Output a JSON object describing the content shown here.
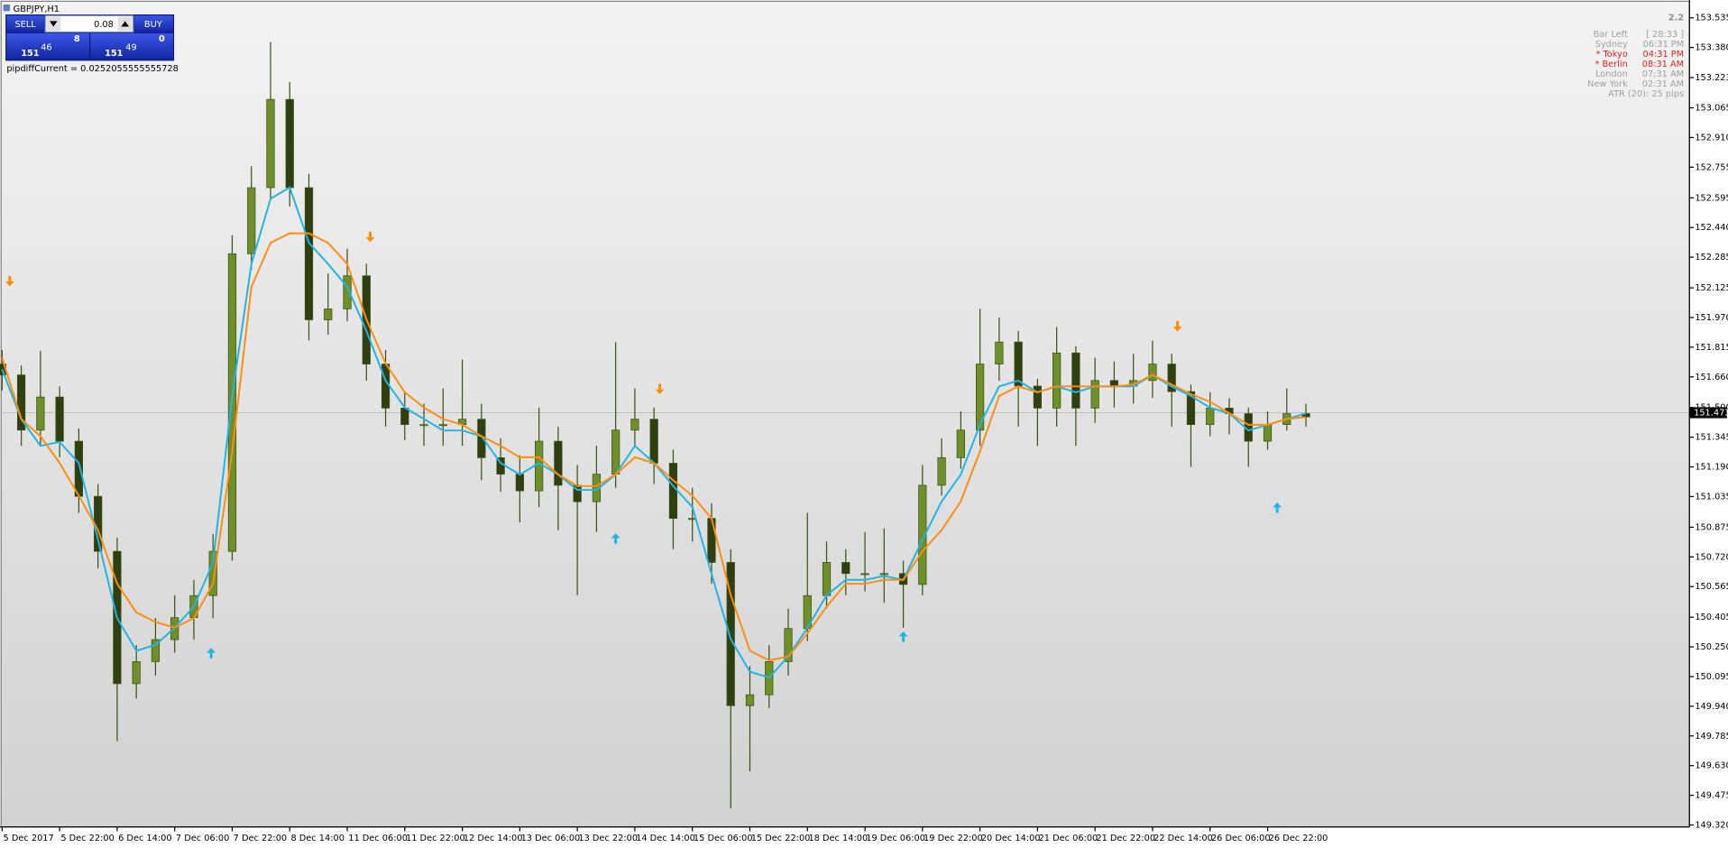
{
  "window": {
    "title": "GBPJPY,H1"
  },
  "trade_panel": {
    "sell": "SELL",
    "buy": "BUY",
    "lots": "0.08",
    "bid": {
      "big": "151",
      "pips": "46",
      "point": "8"
    },
    "ask": {
      "big": "151",
      "pips": "49",
      "point": "0"
    }
  },
  "indicator_text": "pipdiffCurrent = 0.0252055555555728",
  "info_panel": {
    "spread": "2.2",
    "rows": [
      {
        "label": "Bar Left",
        "value": "[ 28:33 ]",
        "color": "#a0a0a0"
      },
      {
        "label": "Sydney",
        "value": "06:31 PM",
        "color": "#a0a0a0"
      },
      {
        "label": "* Tokyo",
        "value": "04:31 PM",
        "color": "#e02020"
      },
      {
        "label": "* Berlin",
        "value": "08:31 AM",
        "color": "#e02020"
      },
      {
        "label": "London",
        "value": "07:31 AM",
        "color": "#a0a0a0"
      },
      {
        "label": "New York",
        "value": "02:31 AM",
        "color": "#a0a0a0"
      }
    ],
    "atr": "ATR (20): 25 pips"
  },
  "chart_data": {
    "type": "candlestick",
    "up_color": "#6f8f2a",
    "down_color": "#2f3f12",
    "wick_color": "#3a5214",
    "open": [
      151.727,
      151.67,
      151.382,
      151.555,
      151.324,
      151.036,
      150.749,
      150.058,
      150.173,
      150.288,
      150.403,
      150.518,
      150.749,
      152.303,
      152.648,
      153.109,
      152.648,
      151.958,
      152.015,
      152.188,
      151.727,
      151.497,
      151.411,
      151.411,
      151.411,
      151.439,
      151.238,
      151.152,
      151.065,
      151.324,
      151.094,
      151.008,
      151.152,
      151.382,
      151.439,
      151.209,
      150.921,
      150.921,
      150.691,
      149.943,
      150.0,
      150.173,
      150.346,
      150.518,
      150.691,
      150.633,
      150.633,
      150.633,
      150.576,
      151.094,
      151.238,
      151.382,
      151.727,
      151.842,
      151.612,
      151.497,
      151.785,
      151.497,
      151.641,
      151.612,
      151.641,
      151.727,
      151.583,
      151.411,
      151.497,
      151.468,
      151.324,
      151.411,
      151.468
    ],
    "high": [
      151.8,
      151.72,
      151.796,
      151.61,
      151.39,
      151.1,
      150.82,
      150.26,
      150.4,
      150.52,
      150.6,
      150.84,
      152.4,
      152.76,
      153.408,
      153.2,
      152.72,
      152.2,
      152.33,
      152.25,
      151.8,
      151.58,
      151.52,
      151.6,
      151.75,
      151.52,
      151.34,
      151.25,
      151.5,
      151.4,
      151.2,
      151.3,
      151.842,
      151.6,
      151.5,
      151.28,
      151.08,
      151.0,
      150.76,
      150.15,
      150.26,
      150.45,
      150.95,
      150.8,
      150.76,
      150.85,
      150.87,
      150.7,
      151.2,
      151.34,
      151.48,
      152.015,
      151.97,
      151.9,
      151.65,
      151.92,
      151.82,
      151.76,
      151.74,
      151.78,
      151.85,
      151.78,
      151.62,
      151.58,
      151.55,
      151.5,
      151.48,
      151.6,
      151.52
    ],
    "low": [
      151.59,
      151.3,
      151.3,
      151.24,
      150.95,
      150.66,
      149.758,
      149.98,
      150.1,
      150.22,
      150.288,
      150.4,
      150.7,
      152.22,
      152.58,
      152.55,
      151.85,
      151.88,
      151.95,
      151.64,
      151.4,
      151.33,
      151.3,
      151.3,
      151.3,
      151.12,
      151.06,
      150.9,
      150.98,
      150.86,
      150.52,
      150.85,
      151.08,
      151.3,
      151.1,
      150.76,
      150.8,
      150.58,
      149.407,
      149.6,
      149.93,
      150.1,
      150.28,
      150.45,
      150.52,
      150.54,
      150.48,
      150.35,
      150.52,
      151.04,
      151.18,
      151.3,
      151.64,
      151.4,
      151.3,
      151.4,
      151.3,
      151.42,
      151.5,
      151.52,
      151.55,
      151.4,
      151.19,
      151.35,
      151.36,
      151.19,
      151.28,
      151.38,
      151.4
    ],
    "close": [
      151.67,
      151.382,
      151.555,
      151.324,
      151.036,
      150.749,
      150.058,
      150.173,
      150.288,
      150.403,
      150.518,
      150.749,
      152.303,
      152.648,
      153.109,
      152.648,
      151.958,
      152.015,
      152.188,
      151.727,
      151.497,
      151.411,
      151.411,
      151.411,
      151.439,
      151.238,
      151.152,
      151.065,
      151.324,
      151.094,
      151.008,
      151.152,
      151.382,
      151.439,
      151.209,
      150.921,
      150.921,
      150.691,
      149.943,
      150.0,
      150.173,
      150.346,
      150.518,
      150.691,
      150.633,
      150.633,
      150.633,
      150.576,
      151.094,
      151.238,
      151.382,
      151.727,
      151.842,
      151.612,
      151.497,
      151.785,
      151.497,
      151.641,
      151.612,
      151.641,
      151.727,
      151.583,
      151.411,
      151.497,
      151.468,
      151.324,
      151.411,
      151.468,
      151.451
    ],
    "lines": [
      {
        "color": "#1eb4e6",
        "values": [
          151.7,
          151.44,
          151.3,
          151.32,
          151.21,
          150.81,
          150.4,
          150.23,
          150.26,
          150.35,
          150.46,
          150.69,
          151.56,
          152.25,
          152.59,
          152.65,
          152.36,
          152.25,
          152.13,
          151.9,
          151.64,
          151.5,
          151.44,
          151.38,
          151.38,
          151.35,
          151.21,
          151.15,
          151.21,
          151.15,
          151.07,
          151.07,
          151.15,
          151.3,
          151.21,
          151.09,
          150.98,
          150.63,
          150.29,
          150.12,
          150.09,
          150.2,
          150.35,
          150.52,
          150.6,
          150.6,
          150.62,
          150.6,
          150.81,
          151.01,
          151.15,
          151.41,
          151.61,
          151.64,
          151.58,
          151.61,
          151.58,
          151.61,
          151.61,
          151.61,
          151.67,
          151.61,
          151.56,
          151.5,
          151.47,
          151.38,
          151.41,
          151.44,
          151.47
        ]
      },
      {
        "color": "#ff8c0a",
        "values": [
          151.76,
          151.44,
          151.35,
          151.21,
          151.04,
          150.86,
          150.58,
          150.43,
          150.38,
          150.35,
          150.4,
          150.58,
          151.27,
          152.13,
          152.36,
          152.41,
          152.41,
          152.36,
          152.25,
          151.96,
          151.73,
          151.58,
          151.5,
          151.44,
          151.41,
          151.35,
          151.3,
          151.24,
          151.24,
          151.15,
          151.09,
          151.09,
          151.15,
          151.24,
          151.21,
          151.12,
          151.04,
          150.92,
          150.52,
          150.23,
          150.18,
          150.2,
          150.32,
          150.46,
          150.58,
          150.58,
          150.6,
          150.6,
          150.75,
          150.86,
          151.01,
          151.27,
          151.56,
          151.61,
          151.58,
          151.61,
          151.61,
          151.61,
          151.61,
          151.62,
          151.67,
          151.62,
          151.57,
          151.53,
          151.47,
          151.41,
          151.41,
          151.44,
          151.45
        ]
      }
    ],
    "signals_down": {
      "color": "#ff8c0a",
      "x": [
        0.4,
        19.2,
        34.3,
        61.3
      ],
      "y": [
        152.159,
        152.389,
        151.595,
        151.923
      ]
    },
    "signals_up": {
      "color": "#1eb4e6",
      "x": [
        10.9,
        32,
        47,
        66.5
      ],
      "y": [
        150.219,
        150.818,
        150.305,
        150.979
      ]
    },
    "last_price": 151.473,
    "xlim": [
      -0.11,
      88.0
    ],
    "xticks": [
      {
        "value": 0,
        "label": "5 Dec 2017"
      },
      {
        "value": 3,
        "label": "5 Dec 22:00"
      },
      {
        "value": 6,
        "label": "6 Dec 14:00"
      },
      {
        "value": 9,
        "label": "7 Dec 06:00"
      },
      {
        "value": 12,
        "label": "7 Dec 22:00"
      },
      {
        "value": 15,
        "label": "8 Dec 14:00"
      },
      {
        "value": 18,
        "label": "11 Dec 06:00"
      },
      {
        "value": 21,
        "label": "11 Dec 22:00"
      },
      {
        "value": 24,
        "label": "12 Dec 14:00"
      },
      {
        "value": 27,
        "label": "13 Dec 06:00"
      },
      {
        "value": 30,
        "label": "13 Dec 22:00"
      },
      {
        "value": 33,
        "label": "14 Dec 14:00"
      },
      {
        "value": 36,
        "label": "15 Dec 06:00"
      },
      {
        "value": 39,
        "label": "15 Dec 22:00"
      },
      {
        "value": 42,
        "label": "18 Dec 14:00"
      },
      {
        "value": 45,
        "label": "19 Dec 06:00"
      },
      {
        "value": 48,
        "label": "19 Dec 22:00"
      },
      {
        "value": 51,
        "label": "20 Dec 14:00"
      },
      {
        "value": 54,
        "label": "21 Dec 06:00"
      },
      {
        "value": 57,
        "label": "21 Dec 22:00"
      },
      {
        "value": 60,
        "label": "22 Dec 14:00"
      },
      {
        "value": 63,
        "label": "26 Dec 06:00"
      },
      {
        "value": 66,
        "label": "26 Dec 22:00"
      }
    ],
    "ylim": [
      149.31,
      153.61
    ],
    "yticks": [
      153.535,
      {
        "value": 153.38,
        "label": "153.380"
      },
      153.223,
      153.065,
      {
        "value": 152.91,
        "label": "152.910"
      },
      152.755,
      152.595,
      {
        "value": 152.44,
        "label": "152.440"
      },
      152.285,
      152.125,
      {
        "value": 151.97,
        "label": "151.970"
      },
      151.815,
      {
        "value": 151.66,
        "label": "151.660"
      },
      {
        "value": 151.5,
        "label": "151.500"
      },
      151.345,
      {
        "value": 151.19,
        "label": "151.190"
      },
      151.035,
      150.875,
      {
        "value": 150.72,
        "label": "150.720"
      },
      150.565,
      150.405,
      {
        "value": 150.25,
        "label": "150.250"
      },
      150.095,
      {
        "value": 149.94,
        "label": "149.940"
      },
      149.785,
      {
        "value": 149.63,
        "label": "149.630"
      },
      149.475,
      {
        "value": 149.32,
        "label": "149.320"
      }
    ],
    "grid": false
  }
}
